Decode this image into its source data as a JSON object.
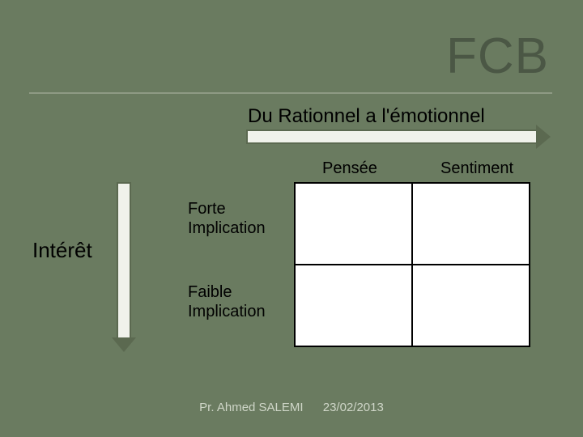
{
  "slide": {
    "background_color": "#6a7b60",
    "text_color": "#ffffff"
  },
  "title": {
    "text": "FCB",
    "color": "#4b5745",
    "underline_color": "#8e9a84"
  },
  "subtitle": {
    "text": "Du Rationnel a l'émotionnel",
    "color": "#000000"
  },
  "horizontal_arrow": {
    "fill": "#f0f2eb",
    "border": "#5b6950"
  },
  "vertical_arrow": {
    "fill": "#f0f2eb",
    "border": "#5b6950"
  },
  "vertical_axis_label": {
    "text": "Intérêt",
    "color": "#000000"
  },
  "matrix": {
    "type": "table",
    "columns": [
      "Pensée",
      "Sentiment"
    ],
    "rows": [
      "Forte\nImplication",
      "Faible\nImplication"
    ],
    "column_header_color": "#000000",
    "row_label_color": "#000000",
    "cell_fill": "#ffffff",
    "border_color": "#000000",
    "cells": [
      [
        "",
        ""
      ],
      [
        "",
        ""
      ]
    ]
  },
  "footer": {
    "author": "Pr. Ahmed SALEMI",
    "date": "23/02/2013",
    "color": "#cfd6c8"
  }
}
